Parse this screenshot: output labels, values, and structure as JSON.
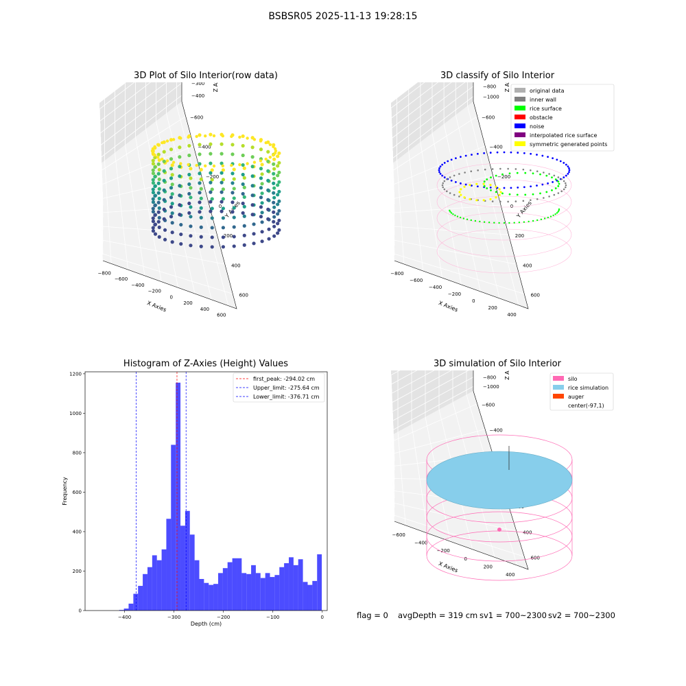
{
  "suptitle": "BSBSR05 2025-11-13 19:28:15",
  "panel1": {
    "title": "3D Plot of Silo Interior(row data)",
    "xlabel": "X Axies",
    "ylabel": "Y Axies",
    "zlabel": "Z Axies (Depth)",
    "xticks": [
      "−800",
      "−600",
      "−400",
      "−200",
      "0",
      "200",
      "400",
      "600"
    ],
    "yticks": [
      "600",
      "400",
      "200",
      "0",
      "−200",
      "−400",
      "−600"
    ],
    "zticks": [
      "0",
      "−100",
      "−200",
      "−300",
      "−400"
    ]
  },
  "panel2": {
    "title": "3D classify of Silo Interior",
    "xlabel": "X Axies",
    "ylabel": "Y Axies",
    "zlabel": "Z Axies (Depth)",
    "xticks": [
      "−800",
      "−600",
      "−400",
      "−200",
      "0",
      "200",
      "400"
    ],
    "yticks": [
      "600",
      "400",
      "200",
      "0",
      "−200",
      "−400",
      "−600"
    ],
    "zticks": [
      "0",
      "−200",
      "−400",
      "−600",
      "−800",
      "−1000"
    ],
    "legend": [
      {
        "label": "original data",
        "color": "#b0b0b0"
      },
      {
        "label": "inner wall",
        "color": "#808080"
      },
      {
        "label": "rice surface",
        "color": "#00ff00"
      },
      {
        "label": "obstacle",
        "color": "#ff0000"
      },
      {
        "label": "noise",
        "color": "#0000ff"
      },
      {
        "label": "interpolated rice surface",
        "color": "#800080"
      },
      {
        "label": "symmetric generated points",
        "color": "#ffff00"
      }
    ]
  },
  "panel3": {
    "title": "Histogram of Z-Axies (Height) Values",
    "legend": [
      {
        "label": "first_peak: -294.02 cm",
        "color": "#ff0000"
      },
      {
        "label": "Upper_limit: -275.64 cm",
        "color": "#0000ff"
      },
      {
        "label": "Lower_limit: -376.71 cm",
        "color": "#0000ff"
      }
    ]
  },
  "panel4": {
    "title": "3D simulation of Silo Interior",
    "xlabel": "X Axies",
    "ylabel": "Y Axies",
    "zlabel": "Z Axies (Depth)",
    "xticks": [
      "−600",
      "−400",
      "−200",
      "0",
      "200",
      "400"
    ],
    "yticks": [
      "600",
      "400",
      "200",
      "0",
      "−200",
      "−400",
      "−600"
    ],
    "zticks": [
      "200",
      "0",
      "−200",
      "−400",
      "−600",
      "−800",
      "−1000"
    ],
    "legend": [
      {
        "label": "silo",
        "color": "#ff69b4"
      },
      {
        "label": "rice simulation",
        "color": "#87ceeb"
      },
      {
        "label": "auger",
        "color": "#ff4500"
      },
      {
        "label": "center(-97,1)",
        "color": ""
      }
    ]
  },
  "status": {
    "flag": "flag = 0",
    "avg": "avgDepth = 319 cm",
    "sv1": "sv1 = 700~2300",
    "sv2": "sv2 = 700~2300"
  },
  "chart_data": {
    "type": "bar",
    "title": "Histogram of Z-Axies (Height) Values",
    "xlabel": "Depth (cm)",
    "ylabel": "Frequency",
    "xlim": [
      -480,
      10
    ],
    "ylim": [
      0,
      1210
    ],
    "xticks": [
      -400,
      -300,
      -200,
      -100,
      0
    ],
    "yticks": [
      0,
      200,
      400,
      600,
      800,
      1000,
      1200
    ],
    "bin_width": 9.53,
    "bins_left": [
      -410.9,
      -401.4,
      -391.9,
      -382.3,
      -372.8,
      -363.3,
      -353.7,
      -344.2,
      -334.7,
      -325.1,
      -315.6,
      -306.1,
      -296.5,
      -287.0,
      -277.5,
      -267.9,
      -258.4,
      -248.9,
      -239.3,
      -229.8,
      -220.3,
      -210.7,
      -201.2,
      -191.7,
      -182.1,
      -172.6,
      -163.1,
      -153.5,
      -144.0,
      -134.5,
      -124.9,
      -115.4,
      -105.9,
      -96.3,
      -86.8,
      -77.3,
      -67.7,
      -58.2,
      -48.7,
      -39.1,
      -29.6,
      -20.1,
      -10.5
    ],
    "values": [
      3,
      10,
      35,
      85,
      125,
      185,
      220,
      280,
      255,
      310,
      465,
      840,
      1155,
      430,
      505,
      385,
      255,
      160,
      140,
      130,
      135,
      190,
      215,
      245,
      265,
      265,
      190,
      185,
      230,
      190,
      165,
      190,
      170,
      180,
      220,
      240,
      270,
      230,
      260,
      145,
      130,
      150,
      285
    ],
    "vlines": [
      {
        "label": "first_peak: -294.02 cm",
        "x": -294.02,
        "color": "#ff0000"
      },
      {
        "label": "Upper_limit: -275.64 cm",
        "x": -275.64,
        "color": "#0000ff"
      },
      {
        "label": "Lower_limit: -376.71 cm",
        "x": -376.71,
        "color": "#0000ff"
      }
    ],
    "bar_color": "#0000ff"
  }
}
